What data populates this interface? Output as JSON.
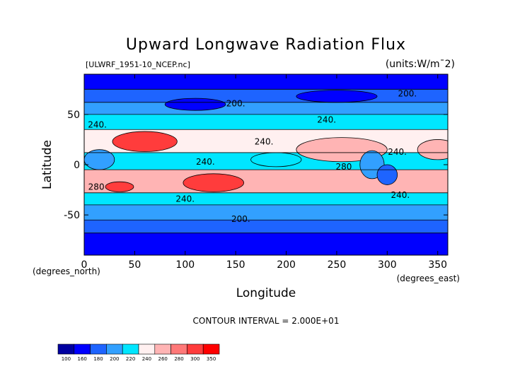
{
  "chart_data": {
    "type": "heatmap",
    "title": "Upward Longwave Radiation Flux",
    "subtitle": "[ULWRF_1951-10_NCEP.nc]",
    "units": "(units:W/m^2)",
    "units_display": "(units:W/m¯2)",
    "xlabel": "Longitude",
    "ylabel": "Latitude",
    "x_unit_note": "(degrees_east)",
    "y_unit_note": "(degrees_north)",
    "xlim": [
      0,
      360
    ],
    "ylim": [
      -90,
      90
    ],
    "x_ticks": [
      0,
      50,
      100,
      150,
      200,
      250,
      300,
      350
    ],
    "y_ticks": [
      -50,
      0,
      50
    ],
    "contour_interval_text": "CONTOUR INTERVAL = 2.000E+01",
    "contour_labels": [
      {
        "value": "200.",
        "lon": 150,
        "lat": 58
      },
      {
        "value": "200.",
        "lon": 320,
        "lat": 68
      },
      {
        "value": "240.",
        "lon": 13,
        "lat": 37
      },
      {
        "value": "240.",
        "lon": 240,
        "lat": 42
      },
      {
        "value": "240.",
        "lon": 178,
        "lat": 20
      },
      {
        "value": "240.",
        "lon": 310,
        "lat": 10
      },
      {
        "value": "240.",
        "lon": 120,
        "lat": 0
      },
      {
        "value": "280",
        "lon": 257,
        "lat": -5
      },
      {
        "value": "280",
        "lon": 12,
        "lat": -25
      },
      {
        "value": "240.",
        "lon": 100,
        "lat": -37
      },
      {
        "value": "240.",
        "lon": 313,
        "lat": -33
      },
      {
        "value": "200.",
        "lon": 155,
        "lat": -57
      }
    ],
    "bands": [
      {
        "lat_from": 90,
        "lat_to": 75,
        "value": 170
      },
      {
        "lat_from": 75,
        "lat_to": 62,
        "value": 190
      },
      {
        "lat_from": 62,
        "lat_to": 50,
        "value": 210
      },
      {
        "lat_from": 50,
        "lat_to": 35,
        "value": 230
      },
      {
        "lat_from": 35,
        "lat_to": 12,
        "value": 250
      },
      {
        "lat_from": 12,
        "lat_to": -5,
        "value": 230
      },
      {
        "lat_from": -5,
        "lat_to": -28,
        "value": 270
      },
      {
        "lat_from": -28,
        "lat_to": -40,
        "value": 230
      },
      {
        "lat_from": -40,
        "lat_to": -55,
        "value": 210
      },
      {
        "lat_from": -55,
        "lat_to": -68,
        "value": 190
      },
      {
        "lat_from": -68,
        "lat_to": -90,
        "value": 170
      }
    ],
    "blobs": [
      {
        "lon": 60,
        "lat": 23,
        "rlon": 32,
        "rlat": 10,
        "value": 310
      },
      {
        "lon": 128,
        "lat": -18,
        "rlon": 30,
        "rlat": 9,
        "value": 310
      },
      {
        "lon": 35,
        "lat": -22,
        "rlon": 14,
        "rlat": 5,
        "value": 310
      },
      {
        "lon": 255,
        "lat": 15,
        "rlon": 45,
        "rlat": 12,
        "value": 270
      },
      {
        "lon": 350,
        "lat": 15,
        "rlon": 20,
        "rlat": 10,
        "value": 270
      },
      {
        "lon": 285,
        "lat": 0,
        "rlon": 12,
        "rlat": 14,
        "value": 210
      },
      {
        "lon": 15,
        "lat": 5,
        "rlon": 15,
        "rlat": 10,
        "value": 210
      },
      {
        "lon": 300,
        "lat": -10,
        "rlon": 10,
        "rlat": 10,
        "value": 190
      },
      {
        "lon": 110,
        "lat": 60,
        "rlon": 30,
        "rlat": 6,
        "value": 170
      },
      {
        "lon": 250,
        "lat": 68,
        "rlon": 40,
        "rlat": 6,
        "value": 170
      },
      {
        "lon": 190,
        "lat": 5,
        "rlon": 25,
        "rlat": 7,
        "value": 230
      }
    ],
    "colorbar": {
      "levels": [
        "100",
        "160",
        "180",
        "200",
        "220",
        "240",
        "260",
        "280",
        "300",
        "350"
      ],
      "colors": [
        "#0000a0",
        "#0000ff",
        "#1e64ff",
        "#32a0ff",
        "#00e6ff",
        "#fff0f0",
        "#ffb4b4",
        "#ff7878",
        "#ff3c3c",
        "#ff0000"
      ]
    }
  }
}
